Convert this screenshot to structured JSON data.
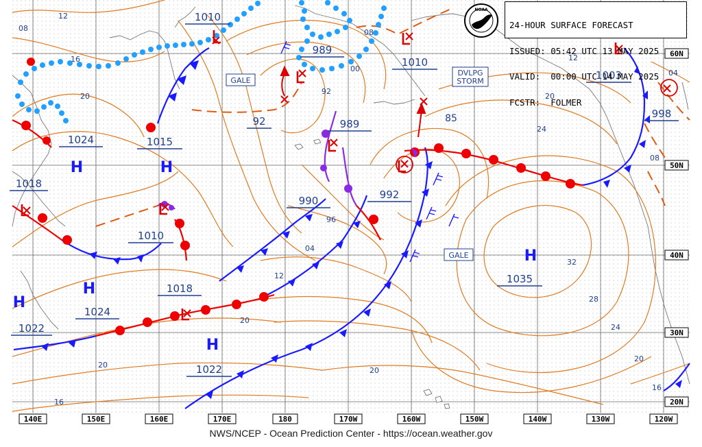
{
  "header": {
    "line1": "24-HOUR SURFACE FORECAST",
    "line2": "ISSUED: 05:42 UTC 13 MAY 2025",
    "line3": "VALID:  00:00 UTC 14 MAY 2025",
    "line4": "FCSTR:  FOLMER",
    "logo_text": "NOAA"
  },
  "footer": "NWS/NCEP - Ocean Prediction Center - https://ocean.weather.gov",
  "lon_labels": [
    "140E",
    "150E",
    "160E",
    "170E",
    "180",
    "170W",
    "160W",
    "150W",
    "140W",
    "130W",
    "120W"
  ],
  "lat_labels": [
    "60N",
    "50N",
    "40N",
    "30N",
    "20N"
  ],
  "highs": [
    {
      "symbol": "H",
      "pressure": "1024"
    },
    {
      "symbol": "H",
      "pressure": ""
    },
    {
      "symbol": "H",
      "pressure": "1018"
    },
    {
      "symbol": "H",
      "pressure": "1024"
    },
    {
      "symbol": "H",
      "pressure": "1022"
    },
    {
      "symbol": "H",
      "pressure": "1022"
    },
    {
      "symbol": "H",
      "pressure": "1035"
    }
  ],
  "low_labels": [
    "1010",
    "989",
    "1010",
    "989",
    "992",
    "990",
    "1003",
    "998",
    "1015",
    "1010",
    "92"
  ],
  "boxed_labels": [
    "GALE",
    "DVLPG STORM",
    "GALE"
  ],
  "isobar_labels": [
    "12",
    "08",
    "16",
    "20",
    "08",
    "00",
    "92",
    "96",
    "04",
    "12",
    "20",
    "20",
    "20",
    "16",
    "85",
    "12",
    "20",
    "24",
    "04",
    "08",
    "32",
    "28",
    "24",
    "20",
    "16"
  ],
  "colors": {
    "isobar": "#e07b20",
    "cold_front": "#1a1aff",
    "warm_front": "#ee0000",
    "occluded_front": "#8a2be2",
    "stationary": "#22a0ff",
    "labels": "#1f3f8f",
    "low_symbol": "#dd0000"
  }
}
